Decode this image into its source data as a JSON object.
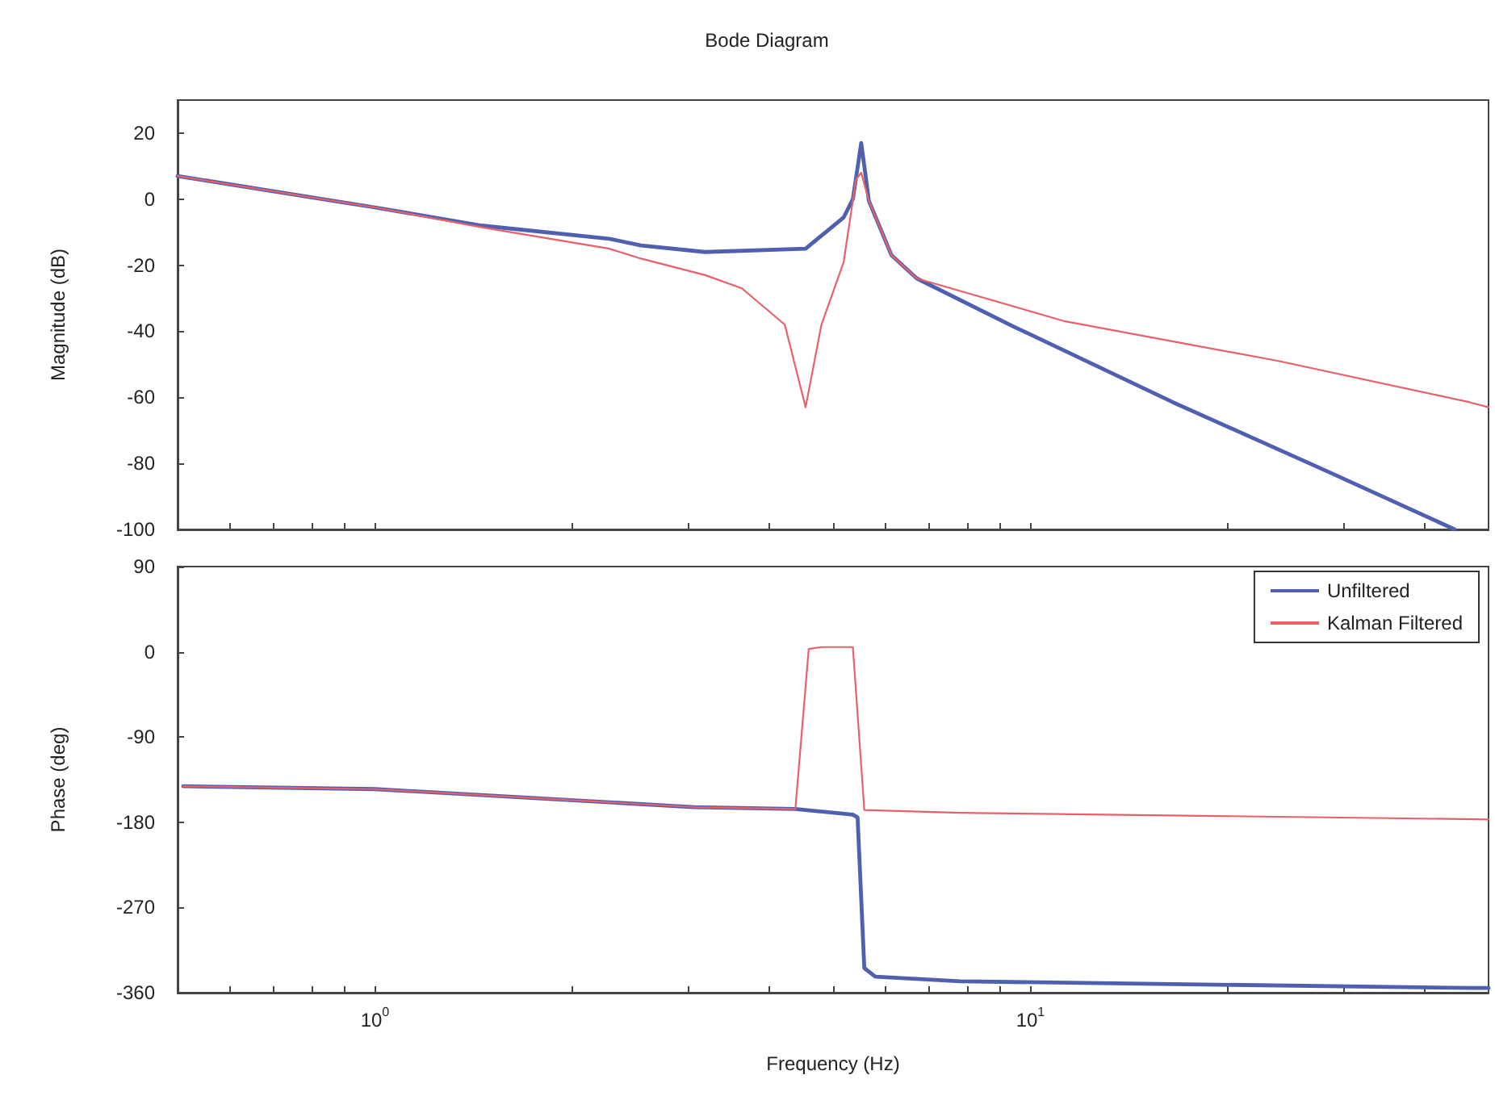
{
  "chart_data": [
    {
      "type": "line",
      "title": "Bode Diagram",
      "ylabel": "Magnitude (dB)",
      "xlim": [
        0.5,
        50
      ],
      "ylim": [
        -100,
        30
      ],
      "log": "x",
      "tick_labels": "y",
      "grid": false,
      "marker": "none",
      "line_style": "solid",
      "xticks": [
        {
          "value": 0.6,
          "label": null
        },
        {
          "value": 0.7,
          "label": null
        },
        {
          "value": 0.8,
          "label": null
        },
        {
          "value": 0.9,
          "label": null
        },
        {
          "value": 1,
          "label": null
        },
        {
          "value": 2,
          "label": null
        },
        {
          "value": 3,
          "label": null
        },
        {
          "value": 4,
          "label": null
        },
        {
          "value": 5,
          "label": null
        },
        {
          "value": 6,
          "label": null
        },
        {
          "value": 7,
          "label": null
        },
        {
          "value": 8,
          "label": null
        },
        {
          "value": 9,
          "label": null
        },
        {
          "value": 10,
          "label": null
        },
        {
          "value": 20,
          "label": null
        },
        {
          "value": 30,
          "label": null
        },
        {
          "value": 40,
          "label": null
        }
      ],
      "yticks": [
        -100,
        -80,
        -60,
        -40,
        -20,
        0,
        20
      ],
      "series": [
        {
          "color": "#5060b0",
          "x": [
            0.5,
            1,
            1.455,
            2.278,
            2.547,
            3.19,
            4.54,
            5.19,
            5.36,
            5.52,
            5.58,
            5.67,
            6.14,
            6.71,
            9.41,
            16.5,
            28.8,
            44.4
          ],
          "values": [
            7,
            -2.5,
            -8,
            -12,
            -14,
            -16,
            -15,
            -5.5,
            0,
            17,
            10,
            -0.5,
            -17,
            -24,
            -38.5,
            -61.5,
            -83,
            -100
          ]
        },
        {
          "color": "#e8606a",
          "x": [
            0.5,
            1,
            1.455,
            2.278,
            2.547,
            3.19,
            3.63,
            4.22,
            4.54,
            4.8,
            5.19,
            5.42,
            5.52,
            5.67,
            6.14,
            6.71,
            11.3,
            23.9,
            46.8,
            50
          ],
          "values": [
            7,
            -2.5,
            -8.5,
            -15,
            -18,
            -23,
            -27,
            -38,
            -63,
            -38,
            -19,
            6,
            8,
            -0.5,
            -17,
            -24,
            -37,
            -49,
            -61.5,
            -63
          ]
        }
      ]
    },
    {
      "type": "line",
      "xlabel": "Frequency (Hz)",
      "ylabel": "Phase (deg)",
      "xlim": [
        0.5,
        50
      ],
      "ylim": [
        -360,
        90
      ],
      "log": "x",
      "grid": false,
      "marker": "none",
      "line_style": "solid",
      "legend": "top right",
      "xticks": [
        {
          "value": 0.6,
          "label": null
        },
        {
          "value": 0.7,
          "label": null
        },
        {
          "value": 0.8,
          "label": null
        },
        {
          "value": 0.9,
          "label": null
        },
        {
          "value": 1,
          "label": "10$^{0}$"
        },
        {
          "value": 2,
          "label": null
        },
        {
          "value": 3,
          "label": null
        },
        {
          "value": 4,
          "label": null
        },
        {
          "value": 5,
          "label": null
        },
        {
          "value": 6,
          "label": null
        },
        {
          "value": 7,
          "label": null
        },
        {
          "value": 8,
          "label": null
        },
        {
          "value": 9,
          "label": null
        },
        {
          "value": 10,
          "label": "10$^{1}$"
        },
        {
          "value": 20,
          "label": null
        },
        {
          "value": 30,
          "label": null
        },
        {
          "value": 40,
          "label": null
        }
      ],
      "yticks": [
        -360,
        -270,
        -180,
        -90,
        0,
        90
      ],
      "series": [
        {
          "name": "Unfiltered",
          "color": "#5060b0",
          "x": [
            0.51,
            1,
            3.07,
            4.38,
            5.36,
            5.45,
            5.58,
            5.8,
            7.82,
            46.8,
            50
          ],
          "values": [
            -142,
            -145,
            -164,
            -166,
            -172,
            -175,
            -334,
            -343,
            -348,
            -355,
            -355
          ]
        },
        {
          "name": "Kalman Filtered",
          "color": "#e8606a",
          "x": [
            0.51,
            1,
            3.07,
            4.38,
            4.59,
            4.8,
            5.36,
            5.58,
            7.82,
            50
          ],
          "values": [
            -142,
            -145,
            -164,
            -166,
            3,
            5,
            5,
            -167,
            -170,
            -177
          ]
        }
      ]
    }
  ]
}
